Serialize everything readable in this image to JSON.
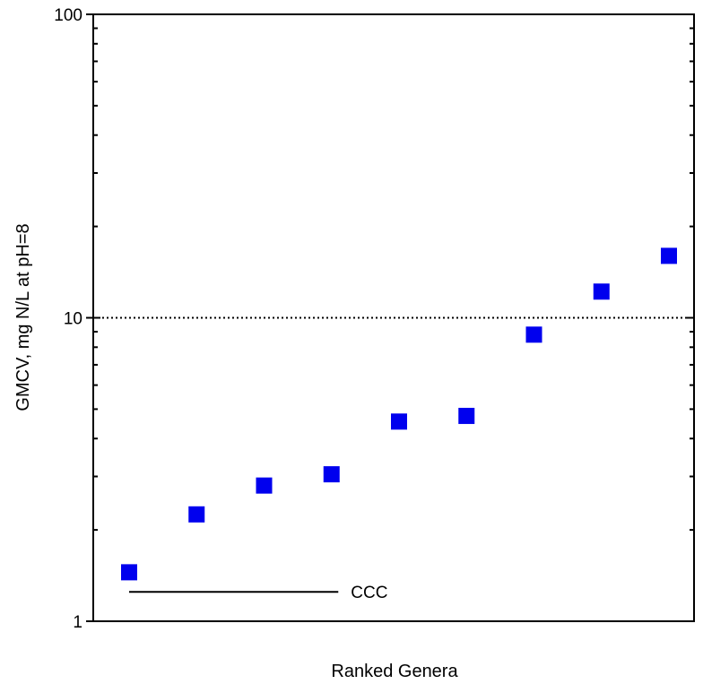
{
  "chart_data": {
    "type": "scatter",
    "xlabel": "Ranked Genera",
    "ylabel": "GMCV, mg N/L at pH=8",
    "yscale": "log",
    "ylim": [
      1,
      100
    ],
    "y_ticks": [
      "1",
      "10",
      "100"
    ],
    "x": [
      1,
      2,
      3,
      4,
      5,
      6,
      7,
      8,
      9
    ],
    "values": [
      1.45,
      2.25,
      2.8,
      3.05,
      4.55,
      4.75,
      8.8,
      12.2,
      16.0
    ],
    "marker": "square",
    "marker_color": "#0000ee",
    "reference_lines": [
      {
        "y": 10,
        "style": "dotted"
      },
      {
        "y": 1.25,
        "style": "solid",
        "x_from": 1,
        "x_to": 3,
        "label": "CCC"
      }
    ],
    "grid": false
  }
}
